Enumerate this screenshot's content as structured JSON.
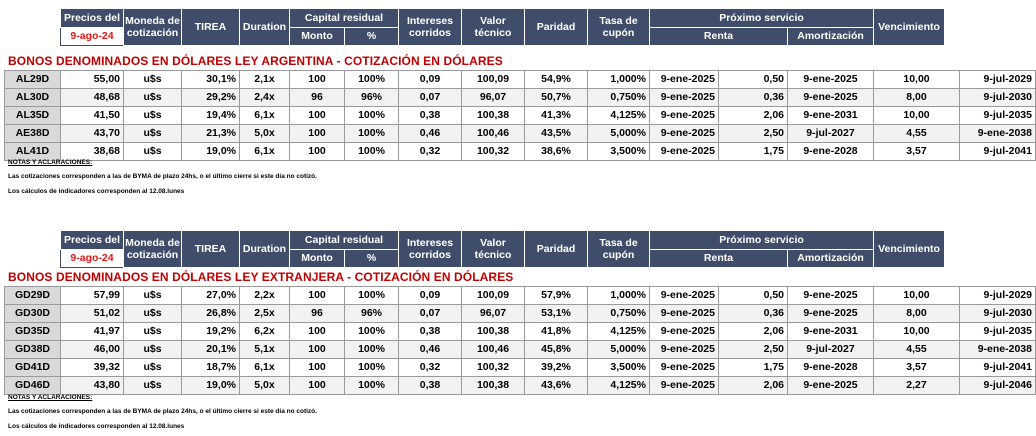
{
  "header": {
    "precios_del": "Precios del",
    "date": "9-ago-24",
    "moneda": "Moneda de cotización",
    "tirea": "TIREA",
    "duration": "Duration",
    "capital_residual": "Capital residual",
    "monto": "Monto",
    "pct": "%",
    "intereses": "Intereses corridos",
    "valor_tecnico": "Valor técnico",
    "paridad": "Paridad",
    "tasa_cupon": "Tasa de cupón",
    "proximo_servicio": "Próximo servicio",
    "renta": "Renta",
    "amortizacion": "Amortización",
    "vencimiento": "Vencimiento"
  },
  "sections": [
    {
      "title": "BONOS DENOMINADOS EN DÓLARES LEY ARGENTINA   -   COTIZACIÓN EN DÓLARES",
      "rows": [
        [
          "AL29D",
          "55,00",
          "u$s",
          "30,1%",
          "2,1x",
          "100",
          "100%",
          "0,09",
          "100,09",
          "54,9%",
          "1,000%",
          "9-ene-2025",
          "0,50",
          "9-ene-2025",
          "10,00",
          "9-jul-2029"
        ],
        [
          "AL30D",
          "48,68",
          "u$s",
          "29,2%",
          "2,4x",
          "96",
          "96%",
          "0,07",
          "96,07",
          "50,7%",
          "0,750%",
          "9-ene-2025",
          "0,36",
          "9-ene-2025",
          "8,00",
          "9-jul-2030"
        ],
        [
          "AL35D",
          "41,50",
          "u$s",
          "19,4%",
          "6,1x",
          "100",
          "100%",
          "0,38",
          "100,38",
          "41,3%",
          "4,125%",
          "9-ene-2025",
          "2,06",
          "9-ene-2031",
          "10,00",
          "9-jul-2035"
        ],
        [
          "AE38D",
          "43,70",
          "u$s",
          "21,3%",
          "5,0x",
          "100",
          "100%",
          "0,46",
          "100,46",
          "43,5%",
          "5,000%",
          "9-ene-2025",
          "2,50",
          "9-jul-2027",
          "4,55",
          "9-ene-2038"
        ],
        [
          "AL41D",
          "38,68",
          "u$s",
          "19,0%",
          "6,1x",
          "100",
          "100%",
          "0,32",
          "100,32",
          "38,6%",
          "3,500%",
          "9-ene-2025",
          "1,75",
          "9-ene-2028",
          "3,57",
          "9-jul-2041"
        ]
      ],
      "notes_title": "NOTAS Y ACLARACIONES:",
      "note1": "Las cotizaciones corresponden a las de BYMA de plazo 24hs, o el último cierre si este día no cotizó.",
      "note2": "Los cálculos de indicadores corresponden al 12.08.lunes"
    },
    {
      "title": "BONOS DENOMINADOS EN DÓLARES LEY EXTRANJERA   -   COTIZACIÓN EN DÓLARES",
      "rows": [
        [
          "GD29D",
          "57,99",
          "u$s",
          "27,0%",
          "2,2x",
          "100",
          "100%",
          "0,09",
          "100,09",
          "57,9%",
          "1,000%",
          "9-ene-2025",
          "0,50",
          "9-ene-2025",
          "10,00",
          "9-jul-2029"
        ],
        [
          "GD30D",
          "51,02",
          "u$s",
          "26,8%",
          "2,5x",
          "96",
          "96%",
          "0,07",
          "96,07",
          "53,1%",
          "0,750%",
          "9-ene-2025",
          "0,36",
          "9-ene-2025",
          "8,00",
          "9-jul-2030"
        ],
        [
          "GD35D",
          "41,97",
          "u$s",
          "19,2%",
          "6,2x",
          "100",
          "100%",
          "0,38",
          "100,38",
          "41,8%",
          "4,125%",
          "9-ene-2025",
          "2,06",
          "9-ene-2031",
          "10,00",
          "9-jul-2035"
        ],
        [
          "GD38D",
          "46,00",
          "u$s",
          "20,1%",
          "5,1x",
          "100",
          "100%",
          "0,46",
          "100,46",
          "45,8%",
          "5,000%",
          "9-ene-2025",
          "2,50",
          "9-jul-2027",
          "4,55",
          "9-ene-2038"
        ],
        [
          "GD41D",
          "39,32",
          "u$s",
          "18,7%",
          "6,1x",
          "100",
          "100%",
          "0,32",
          "100,32",
          "39,2%",
          "3,500%",
          "9-ene-2025",
          "1,75",
          "9-ene-2028",
          "3,57",
          "9-jul-2041"
        ],
        [
          "GD46D",
          "43,80",
          "u$s",
          "19,0%",
          "5,0x",
          "100",
          "100%",
          "0,38",
          "100,38",
          "43,6%",
          "4,125%",
          "9-ene-2025",
          "2,06",
          "9-ene-2025",
          "2,27",
          "9-jul-2046"
        ]
      ],
      "notes_title": "NOTAS Y ACLARACIONES:",
      "note1": "Las cotizaciones corresponden a las de BYMA de plazo 24hs, o el último cierre si este día no cotizó.",
      "note2": "Los cálculos de indicadores corresponden al 12.08.lunes"
    }
  ],
  "colors": {
    "header_bg": "#3f4d6b",
    "title_red": "#c00000",
    "date_red": "#e01616"
  }
}
